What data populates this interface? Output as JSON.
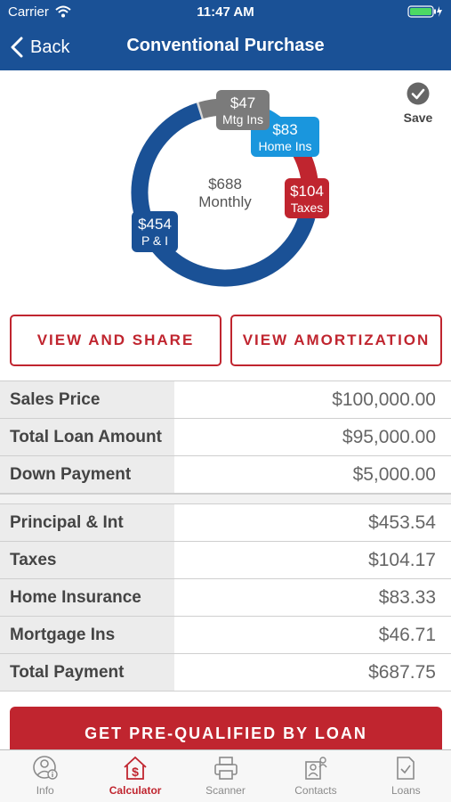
{
  "status_bar": {
    "carrier": "Carrier",
    "time": "11:47 AM"
  },
  "nav": {
    "back_label": "Back",
    "title": "Conventional Purchase"
  },
  "save_label": "Save",
  "chart_data": {
    "type": "pie",
    "center_value": "$688",
    "center_label": "Monthly",
    "slices": [
      {
        "name": "P & I",
        "value": 454,
        "label": "$454",
        "color": "#1a5196"
      },
      {
        "name": "Taxes",
        "value": 104,
        "label": "$104",
        "color": "#c0252f"
      },
      {
        "name": "Home Ins",
        "value": 83,
        "label": "$83",
        "color": "#1a96dd"
      },
      {
        "name": "Mtg Ins",
        "value": 47,
        "label": "$47",
        "color": "#7b7b7b"
      }
    ]
  },
  "buttons": {
    "view_share": "VIEW AND SHARE",
    "view_amortization": "VIEW AMORTIZATION",
    "prequalified": "GET PRE-QUALIFIED BY LOAN"
  },
  "loan_rows": [
    {
      "label": "Sales Price",
      "value": "$100,000.00"
    },
    {
      "label": "Total Loan Amount",
      "value": "$95,000.00"
    },
    {
      "label": "Down Payment",
      "value": "$5,000.00"
    }
  ],
  "payment_rows": [
    {
      "label": "Principal & Int",
      "value": "$453.54"
    },
    {
      "label": "Taxes",
      "value": "$104.17"
    },
    {
      "label": "Home Insurance",
      "value": "$83.33"
    },
    {
      "label": "Mortgage Ins",
      "value": "$46.71"
    },
    {
      "label": "Total Payment",
      "value": "$687.75"
    }
  ],
  "tabs": [
    {
      "label": "Info",
      "icon": "info-person-icon",
      "active": false
    },
    {
      "label": "Calculator",
      "icon": "house-dollar-icon",
      "active": true
    },
    {
      "label": "Scanner",
      "icon": "printer-icon",
      "active": false
    },
    {
      "label": "Contacts",
      "icon": "contacts-icon",
      "active": false
    },
    {
      "label": "Loans",
      "icon": "document-check-icon",
      "active": false
    }
  ]
}
